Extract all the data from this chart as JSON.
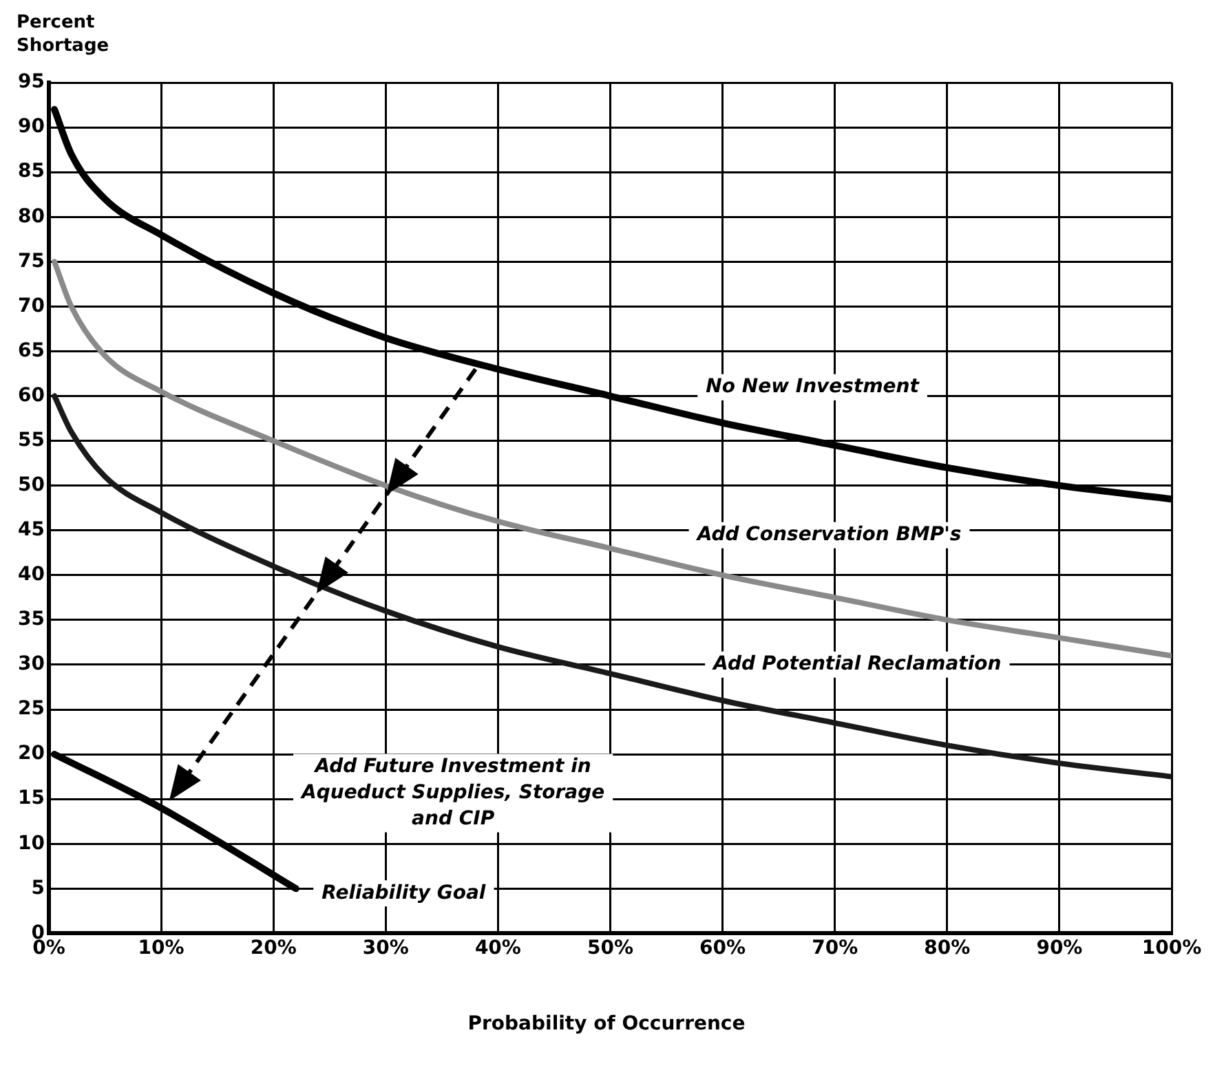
{
  "chart_data": {
    "type": "line",
    "xlabel": "Probability of Occurrence",
    "ylabel": "Percent\nShortage",
    "xlim": [
      0,
      100
    ],
    "ylim": [
      0,
      95
    ],
    "xticks": [
      {
        "value": 0,
        "label": "0%"
      },
      {
        "value": 10,
        "label": "10%"
      },
      {
        "value": 20,
        "label": "20%"
      },
      {
        "value": 30,
        "label": "30%"
      },
      {
        "value": 40,
        "label": "40%"
      },
      {
        "value": 50,
        "label": "50%"
      },
      {
        "value": 60,
        "label": "60%"
      },
      {
        "value": 70,
        "label": "70%"
      },
      {
        "value": 80,
        "label": "80%"
      },
      {
        "value": 90,
        "label": "90%"
      },
      {
        "value": 100,
        "label": "100%"
      }
    ],
    "yticks": [
      0,
      5,
      10,
      15,
      20,
      25,
      30,
      35,
      40,
      45,
      50,
      55,
      60,
      65,
      70,
      75,
      80,
      85,
      90,
      95
    ],
    "grid": true,
    "legend": false,
    "marker": "none",
    "line_style": "solid",
    "series": [
      {
        "color": "#000000",
        "x": [
          0.5,
          2,
          5,
          10,
          20,
          30,
          40,
          50,
          60,
          70,
          80,
          90,
          100
        ],
        "values": [
          92,
          87,
          82,
          78,
          71.5,
          66.5,
          63,
          60,
          57,
          54.5,
          52,
          50,
          48.5
        ]
      },
      {
        "color": "#8a8a8a",
        "x": [
          0.5,
          2,
          5,
          10,
          20,
          30,
          40,
          50,
          60,
          70,
          80,
          90,
          100
        ],
        "values": [
          75,
          70,
          64.5,
          60.5,
          55,
          50,
          46,
          43,
          40,
          37.5,
          35,
          33,
          31
        ]
      },
      {
        "color": "#1a1a1a",
        "x": [
          0.5,
          2,
          5,
          10,
          20,
          30,
          40,
          50,
          60,
          70,
          80,
          90,
          100
        ],
        "values": [
          60,
          56,
          51,
          47,
          41,
          36,
          32,
          29,
          26,
          23.5,
          21,
          19,
          17.5
        ]
      },
      {
        "color": "#000000",
        "x": [
          0.5,
          10,
          22
        ],
        "values": [
          20,
          14,
          5
        ]
      }
    ],
    "annotations": [
      "No New Investment",
      "Add Conservation BMP's",
      "Add Potential Reclamation",
      "Add Future Investment in\nAqueduct Supplies, Storage\nand CIP",
      "Reliability Goal"
    ]
  }
}
